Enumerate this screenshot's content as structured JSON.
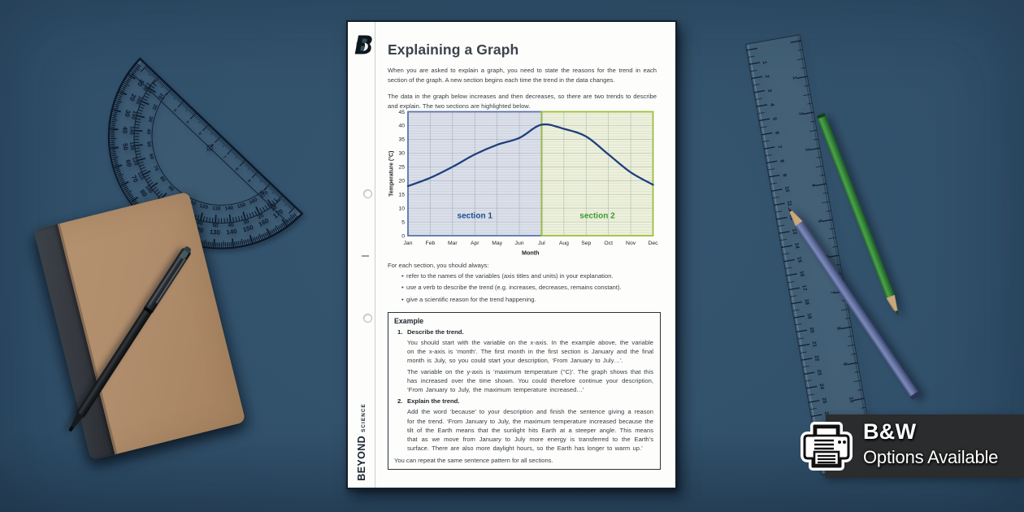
{
  "scene": {
    "desk_color": "#2e4d68",
    "props": [
      "protractor",
      "kraft-notebook",
      "black-pen",
      "transparent-ruler",
      "green-pencil",
      "blue-pencil"
    ]
  },
  "badge": {
    "title": "B&W",
    "subtitle": "Options Available",
    "icon": "printer-icon",
    "background": "#2b2c2d"
  },
  "worksheet": {
    "brand": {
      "name": "BEYOND",
      "sub": "SCIENCE",
      "logo": "beyond-b-logo"
    },
    "title": "Explaining a Graph",
    "intro_paragraphs": [
      "When you are asked to explain a graph, you need to state the reasons for the trend in each section of the graph. A new section begins each time the trend in the data changes.",
      "The data in the graph below increases and then decreases, so there are two trends to describe and explain. The two sections are highlighted below."
    ],
    "instructions_heading": "For each section, you should always:",
    "instructions_bullets": [
      "refer to the names of the variables (axis titles and units) in your explanation.",
      "use a verb to describe the trend (e.g. increases, decreases, remains constant).",
      "give a scientific reason for the trend happening."
    ],
    "example": {
      "heading": "Example",
      "items": [
        {
          "number": "1.",
          "title": "Describe the trend.",
          "paragraphs": [
            "You should start with the variable on the x-axis. In the example above, the variable on the x-axis is ‘month’. The first month in the first section is January and the final month is July, so you could start your description, ‘From January to July…’.",
            "The variable on the y-axis is ‘maximum temperature (°C)’. The graph shows that this has increased over the time shown. You could therefore continue your description, ‘From January to July, the maximum temperature increased…’"
          ]
        },
        {
          "number": "2.",
          "title": "Explain the trend.",
          "paragraphs": [
            "Add the word ‘because’ to your description and finish the sentence giving a reason for the trend. ‘From January to July, the maximum temperature increased because the tilt of the Earth means that the sunlight hits Earth at a steeper angle. This means that as we move from January to July more energy is transferred to the Earth’s surface. There are also more daylight hours, so the Earth has longer to warm up.’"
          ]
        }
      ],
      "footer": "You can repeat the same sentence pattern for all sections."
    }
  },
  "chart_data": {
    "type": "line",
    "x": [
      "Jan",
      "Feb",
      "Mar",
      "Apr",
      "May",
      "Jun",
      "Jul",
      "Aug",
      "Sep",
      "Oct",
      "Nov",
      "Dec"
    ],
    "series": [
      {
        "name": "maximum temperature",
        "values": [
          18,
          21,
          25,
          29.5,
          33,
          35.5,
          40.3,
          38.8,
          36,
          29.5,
          23,
          18.5
        ],
        "color": "#20407c"
      }
    ],
    "xlabel": "Month",
    "ylabel": "Temperature (°C)",
    "ylim": [
      0,
      45
    ],
    "ytick_step": 5,
    "grid": true,
    "sections": [
      {
        "label": "section 1",
        "from": "Jan",
        "to": "Jul",
        "fill": "#dadfe9",
        "border": "#5a73ae",
        "label_color": "#1d4e8f"
      },
      {
        "label": "section 2",
        "from": "Jul",
        "to": "Dec",
        "fill": "#edf1da",
        "border": "#9cbe3c",
        "label_color": "#3f9b35"
      }
    ]
  }
}
